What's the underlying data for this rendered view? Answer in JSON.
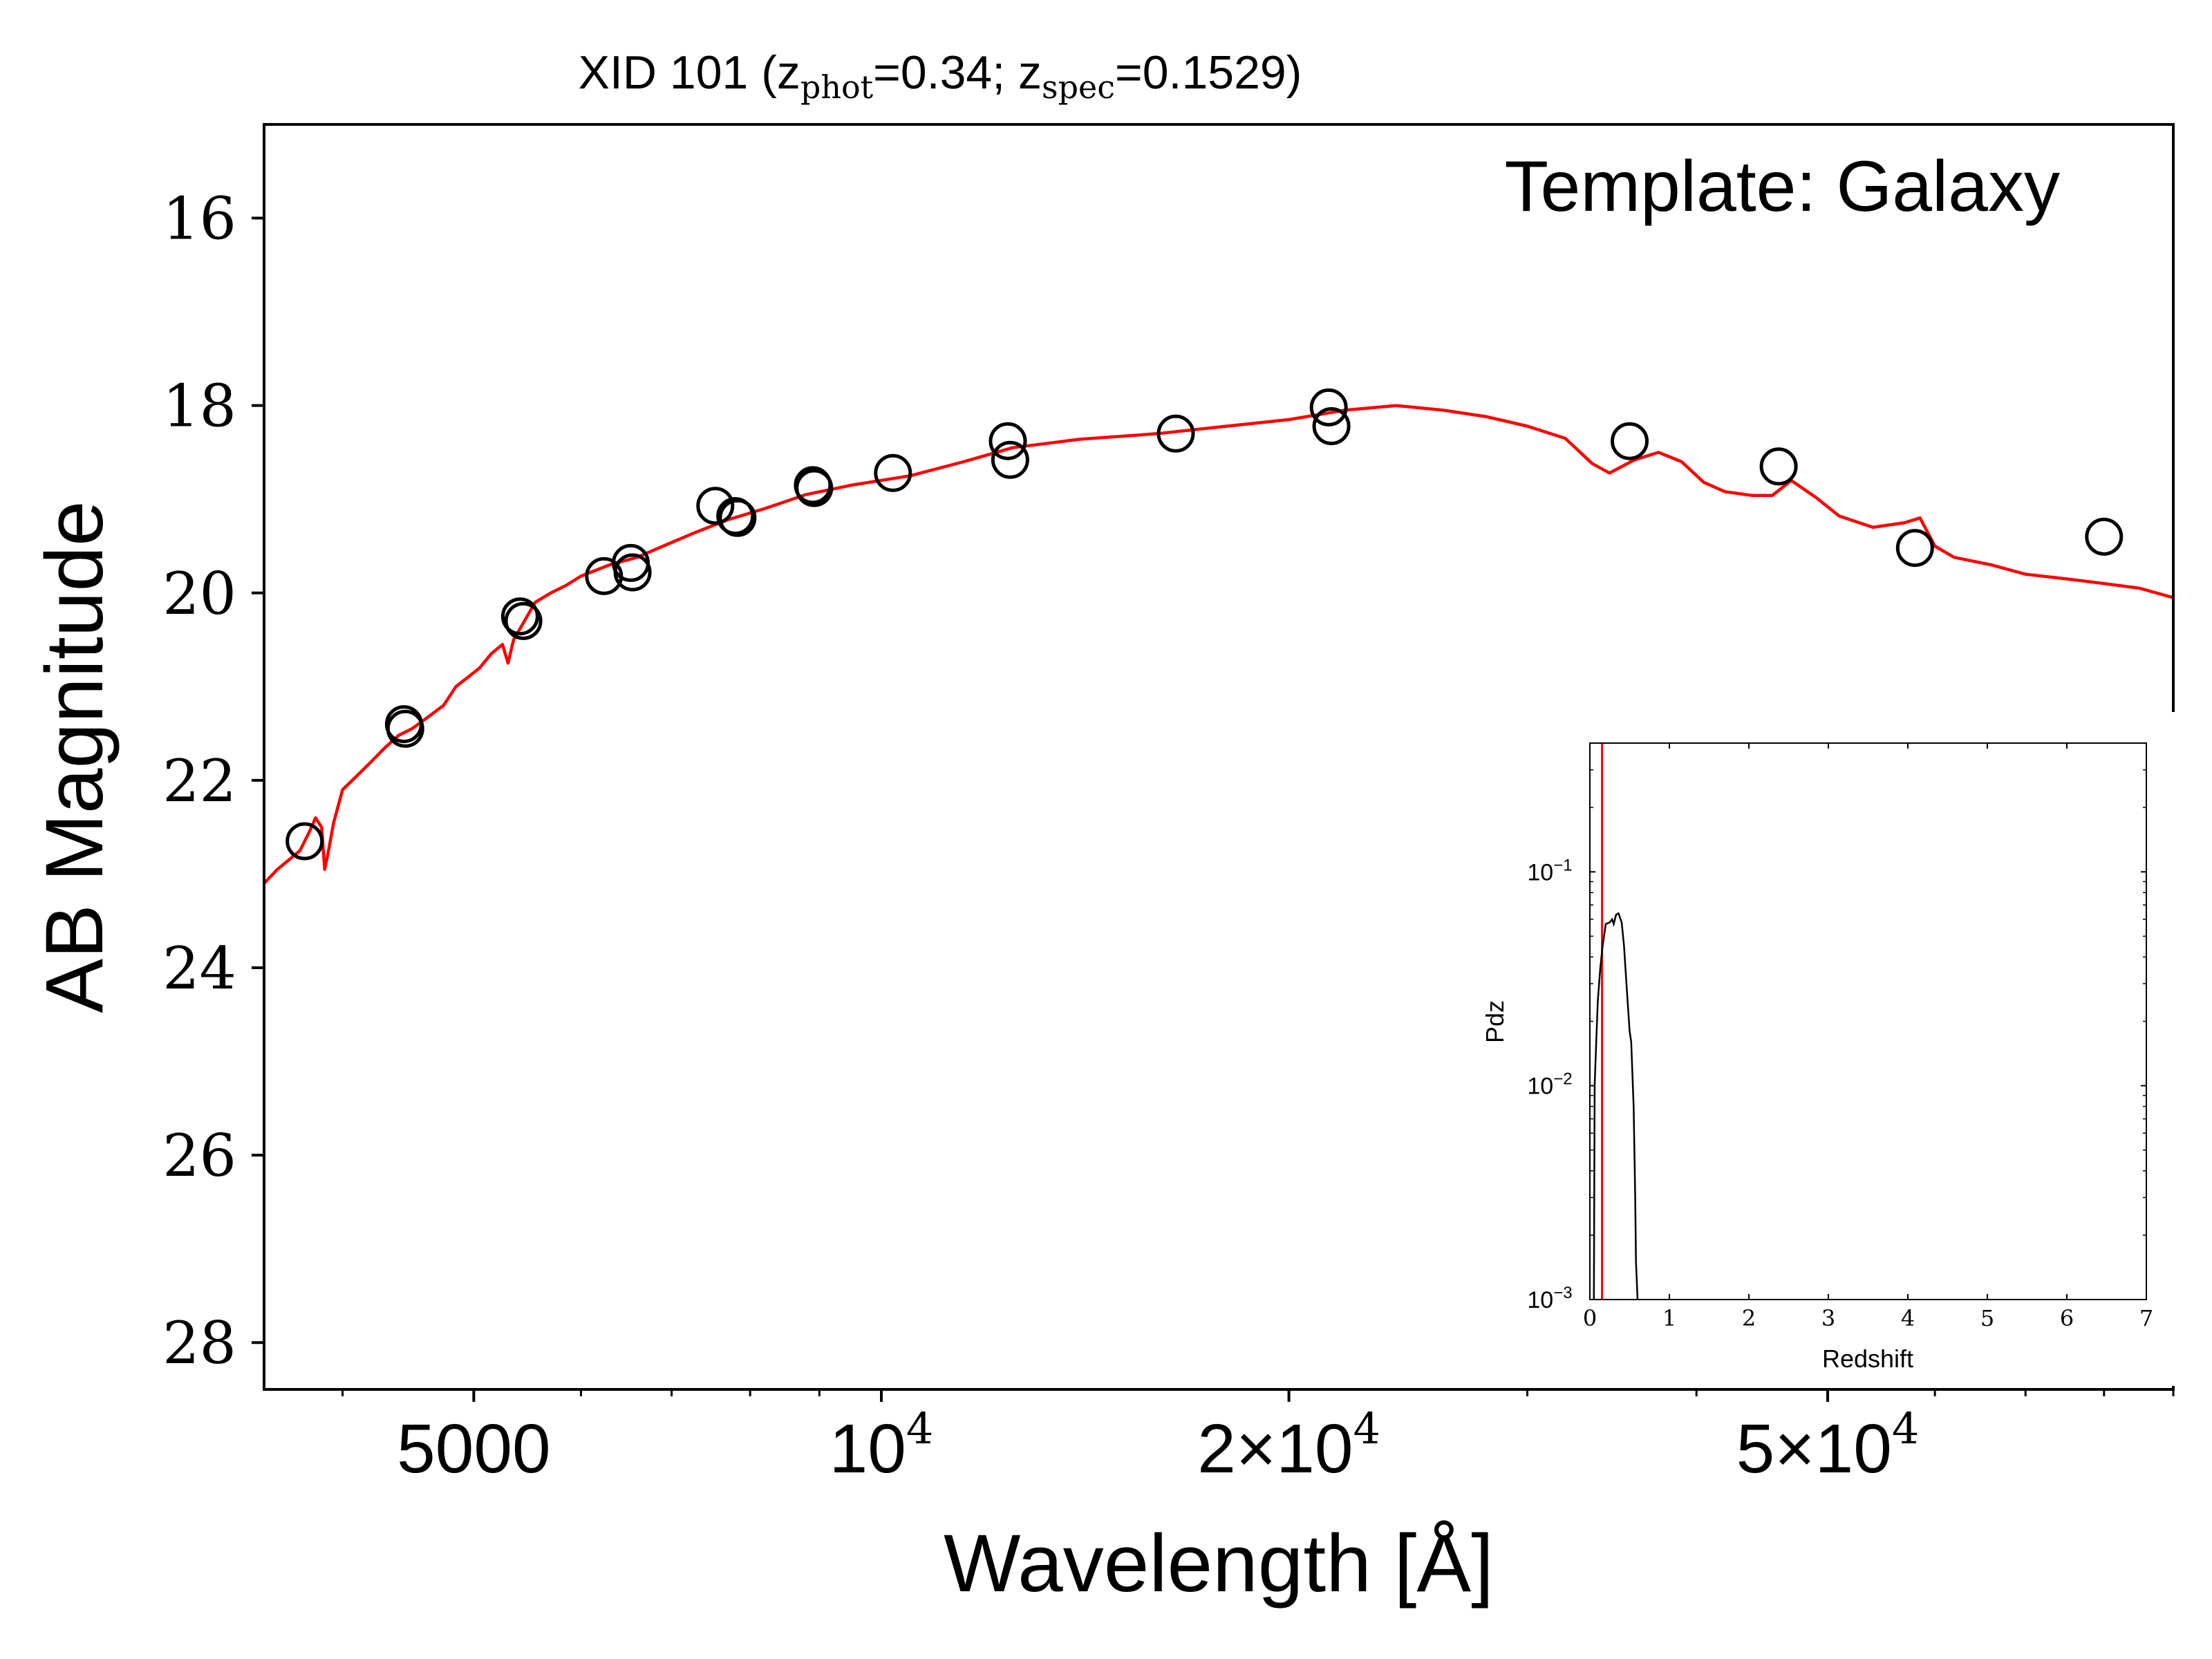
{
  "chart_data": [
    {
      "type": "scatter",
      "title": {
        "prefix": "XID 101 (z",
        "phot_sub": "phot",
        "phot_val": "=0.34; z",
        "spec_sub": "spec",
        "spec_val": "=0.1529)"
      },
      "annotation": "Template: Galaxy",
      "xlabel": "Wavelength [Å]",
      "ylabel": "AB Magnitude",
      "xscale": "log",
      "xlim": [
        3500,
        90000
      ],
      "ylim": [
        28.5,
        15
      ],
      "y_inverted": true,
      "x_ticks": [
        {
          "value": 5000,
          "label": "5000"
        },
        {
          "value": 10000,
          "label": "10",
          "exp": "4"
        },
        {
          "value": 20000,
          "label": "2×10",
          "exp": "4"
        },
        {
          "value": 50000,
          "label": "5×10",
          "exp": "4"
        }
      ],
      "x_minor_ticks": [
        4000,
        6000,
        7000,
        8000,
        9000,
        30000,
        40000,
        60000,
        70000,
        80000,
        90000
      ],
      "y_ticks": [
        16,
        18,
        20,
        22,
        24,
        26,
        28
      ],
      "y_tick_labels": [
        "16",
        "18",
        "20",
        "22",
        "24",
        "26",
        "28"
      ],
      "series": [
        {
          "kind": "observed_photometry",
          "marker": "open-circle",
          "color": "#000000",
          "points": [
            [
              3750,
              22.65
            ],
            [
              4440,
              21.4
            ],
            [
              4450,
              21.45
            ],
            [
              5410,
              20.25
            ],
            [
              5440,
              20.3
            ],
            [
              6240,
              19.82
            ],
            [
              6530,
              19.68
            ],
            [
              6550,
              19.78
            ],
            [
              7540,
              19.07
            ],
            [
              7800,
              19.18
            ],
            [
              7830,
              19.2
            ],
            [
              8900,
              18.85
            ],
            [
              8920,
              18.88
            ],
            [
              10200,
              18.72
            ],
            [
              12400,
              18.38
            ],
            [
              12450,
              18.58
            ],
            [
              16500,
              18.3
            ],
            [
              21400,
              18.02
            ],
            [
              21500,
              18.22
            ],
            [
              35700,
              18.38
            ],
            [
              46000,
              18.65
            ],
            [
              58000,
              19.52
            ],
            [
              80000,
              19.4
            ]
          ]
        },
        {
          "kind": "template_sed",
          "marker": "line",
          "color": "#ff0000",
          "points": [
            [
              3500,
              23.1
            ],
            [
              3580,
              22.95
            ],
            [
              3650,
              22.85
            ],
            [
              3720,
              22.75
            ],
            [
              3780,
              22.55
            ],
            [
              3820,
              22.4
            ],
            [
              3860,
              22.5
            ],
            [
              3880,
              22.95
            ],
            [
              3900,
              22.8
            ],
            [
              3940,
              22.45
            ],
            [
              4000,
              22.1
            ],
            [
              4100,
              21.95
            ],
            [
              4200,
              21.8
            ],
            [
              4300,
              21.65
            ],
            [
              4400,
              21.52
            ],
            [
              4500,
              21.45
            ],
            [
              4600,
              21.35
            ],
            [
              4750,
              21.2
            ],
            [
              4850,
              21.0
            ],
            [
              4950,
              20.9
            ],
            [
              5050,
              20.8
            ],
            [
              5150,
              20.65
            ],
            [
              5250,
              20.55
            ],
            [
              5300,
              20.75
            ],
            [
              5350,
              20.5
            ],
            [
              5450,
              20.3
            ],
            [
              5550,
              20.1
            ],
            [
              5700,
              20.0
            ],
            [
              5850,
              19.92
            ],
            [
              6000,
              19.82
            ],
            [
              6300,
              19.7
            ],
            [
              6600,
              19.62
            ],
            [
              6900,
              19.5
            ],
            [
              7300,
              19.35
            ],
            [
              7700,
              19.22
            ],
            [
              8200,
              19.1
            ],
            [
              8800,
              18.95
            ],
            [
              9500,
              18.85
            ],
            [
              10500,
              18.75
            ],
            [
              11500,
              18.6
            ],
            [
              12500,
              18.45
            ],
            [
              14000,
              18.36
            ],
            [
              16000,
              18.3
            ],
            [
              18000,
              18.22
            ],
            [
              20000,
              18.15
            ],
            [
              22000,
              18.05
            ],
            [
              24000,
              18.0
            ],
            [
              26000,
              18.05
            ],
            [
              28000,
              18.12
            ],
            [
              30000,
              18.22
            ],
            [
              32000,
              18.35
            ],
            [
              33500,
              18.62
            ],
            [
              34500,
              18.72
            ],
            [
              36000,
              18.58
            ],
            [
              37500,
              18.5
            ],
            [
              39000,
              18.6
            ],
            [
              40500,
              18.82
            ],
            [
              42000,
              18.92
            ],
            [
              44000,
              18.96
            ],
            [
              45500,
              18.96
            ],
            [
              47000,
              18.8
            ],
            [
              49000,
              18.98
            ],
            [
              51000,
              19.18
            ],
            [
              54000,
              19.3
            ],
            [
              57000,
              19.25
            ],
            [
              58500,
              19.2
            ],
            [
              60000,
              19.5
            ],
            [
              62000,
              19.62
            ],
            [
              66000,
              19.7
            ],
            [
              70000,
              19.8
            ],
            [
              75000,
              19.85
            ],
            [
              80000,
              19.9
            ],
            [
              85000,
              19.95
            ],
            [
              90000,
              20.05
            ]
          ]
        }
      ]
    },
    {
      "type": "line",
      "title": "",
      "xlabel": "Redshift",
      "ylabel": "Pdz",
      "yscale": "log",
      "xlim": [
        0,
        7
      ],
      "ylim": [
        0.001,
        0.4
      ],
      "x_ticks": [
        0,
        1,
        2,
        3,
        4,
        5,
        6,
        7
      ],
      "x_tick_labels": [
        "0",
        "1",
        "2",
        "3",
        "4",
        "5",
        "6",
        "7"
      ],
      "y_ticks": [
        {
          "value": 0.001,
          "label": "10",
          "exp": "−3"
        },
        {
          "value": 0.01,
          "label": "10",
          "exp": "−2"
        },
        {
          "value": 0.1,
          "label": "10",
          "exp": "−1"
        }
      ],
      "z_spec_line": {
        "value": 0.1529,
        "color": "#ff0000"
      },
      "series": [
        {
          "color": "#000000",
          "x": [
            0.05,
            0.06,
            0.08,
            0.1,
            0.13,
            0.16,
            0.2,
            0.25,
            0.28,
            0.3,
            0.33,
            0.36,
            0.4,
            0.43,
            0.46,
            0.5,
            0.52,
            0.55,
            0.57,
            0.58,
            0.6
          ],
          "y": [
            0.001,
            0.01,
            0.016,
            0.025,
            0.035,
            0.045,
            0.057,
            0.058,
            0.06,
            0.057,
            0.063,
            0.064,
            0.058,
            0.045,
            0.03,
            0.018,
            0.016,
            0.008,
            0.003,
            0.0015,
            0.001
          ]
        }
      ]
    }
  ]
}
